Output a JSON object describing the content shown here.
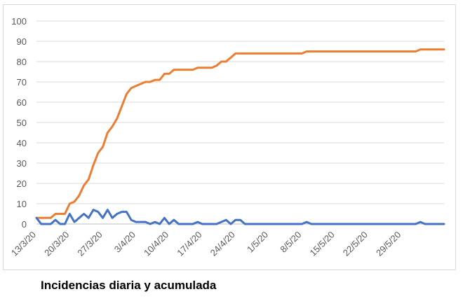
{
  "caption": "Incidencias diaria y acumulada",
  "chart_data": {
    "type": "line",
    "title": "",
    "xlabel": "",
    "ylabel": "",
    "ylim": [
      0,
      100
    ],
    "yticks": [
      0,
      10,
      20,
      30,
      40,
      50,
      60,
      70,
      80,
      90,
      100
    ],
    "grid": true,
    "legend": "none",
    "x_start": "13/3/20",
    "x_tick_labels": [
      "13/3/20",
      "20/3/20",
      "27/3/20",
      "3/4/20",
      "10/4/20",
      "17/4/20",
      "24/4/20",
      "1/5/20",
      "8/5/20",
      "15/5/20",
      "22/5/20",
      "29/5/20"
    ],
    "series": [
      {
        "color": "#ed7d31",
        "values": [
          3,
          3,
          3,
          3,
          5,
          5,
          5,
          10,
          11,
          14,
          19,
          22,
          29,
          35,
          38,
          45,
          48,
          52,
          58,
          64,
          67,
          68,
          69,
          70,
          70,
          71,
          71,
          74,
          74,
          76,
          76,
          76,
          76,
          76,
          77,
          77,
          77,
          77,
          78,
          80,
          80,
          82,
          84,
          84,
          84,
          84,
          84,
          84,
          84,
          84,
          84,
          84,
          84,
          84,
          84,
          84,
          84,
          85,
          85,
          85,
          85,
          85,
          85,
          85,
          85,
          85,
          85,
          85,
          85,
          85,
          85,
          85,
          85,
          85,
          85,
          85,
          85,
          85,
          85,
          85,
          85,
          86,
          86,
          86,
          86,
          86,
          86
        ]
      },
      {
        "color": "#4472c4",
        "values": [
          3,
          0,
          0,
          0,
          2,
          0,
          0,
          5,
          1,
          3,
          5,
          3,
          7,
          6,
          3,
          7,
          3,
          5,
          6,
          6,
          2,
          1,
          1,
          1,
          0,
          1,
          0,
          3,
          0,
          2,
          0,
          0,
          0,
          0,
          1,
          0,
          0,
          0,
          0,
          1,
          2,
          0,
          2,
          2,
          0,
          0,
          0,
          0,
          0,
          0,
          0,
          0,
          0,
          0,
          0,
          0,
          0,
          1,
          0,
          0,
          0,
          0,
          0,
          0,
          0,
          0,
          0,
          0,
          0,
          0,
          0,
          0,
          0,
          0,
          0,
          0,
          0,
          0,
          0,
          0,
          0,
          1,
          0,
          0,
          0,
          0,
          0
        ]
      }
    ]
  }
}
